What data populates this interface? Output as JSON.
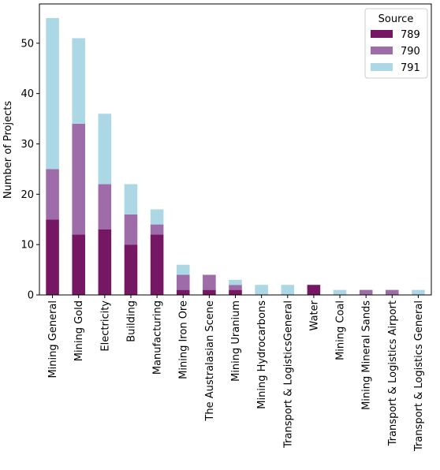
{
  "chart_data": {
    "type": "bar",
    "stacked": true,
    "title": "",
    "xlabel": "",
    "ylabel": "Number of Projects",
    "ylim": [
      0,
      57.8
    ],
    "yticks": [
      0,
      10,
      20,
      30,
      40,
      50
    ],
    "grid": false,
    "legend": {
      "title": "Source",
      "placement": "top-right"
    },
    "categories": [
      "Mining General",
      "Mining Gold",
      "Electricity",
      "Building",
      "Manufacturing",
      "Mining Iron Ore",
      "The Australasian Scene",
      "Mining Uranium",
      "Mining Hydrocarbons",
      "Transport & LogisticsGeneral",
      "Water",
      "Mining Coal",
      "Mining Mineral Sands",
      "Transport & Logistics Airport",
      "Transport & Logistics General"
    ],
    "series": [
      {
        "name": "789",
        "color": "#761763",
        "values": [
          15,
          12,
          13,
          10,
          12,
          1,
          1,
          1,
          0,
          0,
          2,
          0,
          0,
          0,
          0
        ]
      },
      {
        "name": "790",
        "color": "#9e6ca8",
        "values": [
          10,
          22,
          9,
          6,
          2,
          3,
          3,
          1,
          0,
          0,
          0,
          0,
          1,
          1,
          0
        ]
      },
      {
        "name": "791",
        "color": "#acd8e6",
        "values": [
          30,
          17,
          14,
          6,
          3,
          2,
          0,
          1,
          2,
          2,
          0,
          1,
          0,
          0,
          1
        ]
      }
    ]
  }
}
